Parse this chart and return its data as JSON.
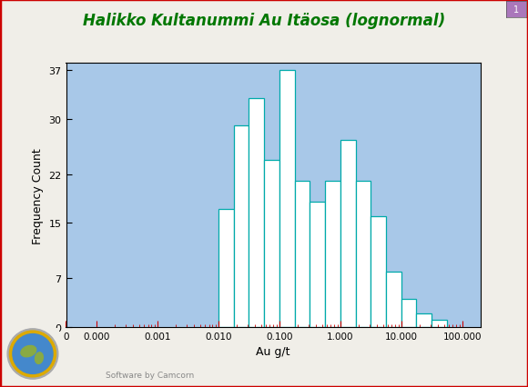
{
  "title": "Halikko Kultanummi Au Itäosa (lognormal)",
  "xlabel": "Au g/t",
  "ylabel": "Frequency Count",
  "title_color": "#007700",
  "title_fontsize": 12,
  "plot_bg_color": "#A8C8E8",
  "outer_bg_color": "#F0EEE8",
  "bar_face_color": "#FFFFFF",
  "bar_edge_color": "#00AAAA",
  "bar_linewidth": 0.9,
  "bar_heights": [
    17,
    29,
    33,
    24,
    37,
    21,
    18,
    21,
    27,
    21,
    16,
    8,
    4,
    2,
    1
  ],
  "bin_log_edges": [
    -2.0,
    -1.75,
    -1.5,
    -1.25,
    -1.0,
    -0.75,
    -0.5,
    -0.25,
    0.0,
    0.25,
    0.5,
    0.75,
    1.0,
    1.25,
    1.5,
    1.75
  ],
  "xlim": [
    -3.5,
    2.5
  ],
  "ylim": [
    0,
    38
  ],
  "yticks": [
    0,
    7,
    15,
    22,
    30,
    37
  ],
  "xtick_positions": [
    -3.5,
    -2.5,
    -1.5,
    -0.5,
    0.5,
    1.5,
    2.5,
    3.5
  ],
  "xtick_labels": [
    "0",
    "0.000",
    "0.001",
    "0.010",
    "0.100",
    "1.000",
    "10.000",
    "100.000"
  ],
  "tick_color": "#CC0000",
  "ylabel_fontsize": 9,
  "xlabel_fontsize": 9,
  "bottom_text": "Software by Camcorn",
  "figsize": [
    5.8,
    4.27
  ],
  "dpi": 100,
  "border_color": "#CC0000"
}
